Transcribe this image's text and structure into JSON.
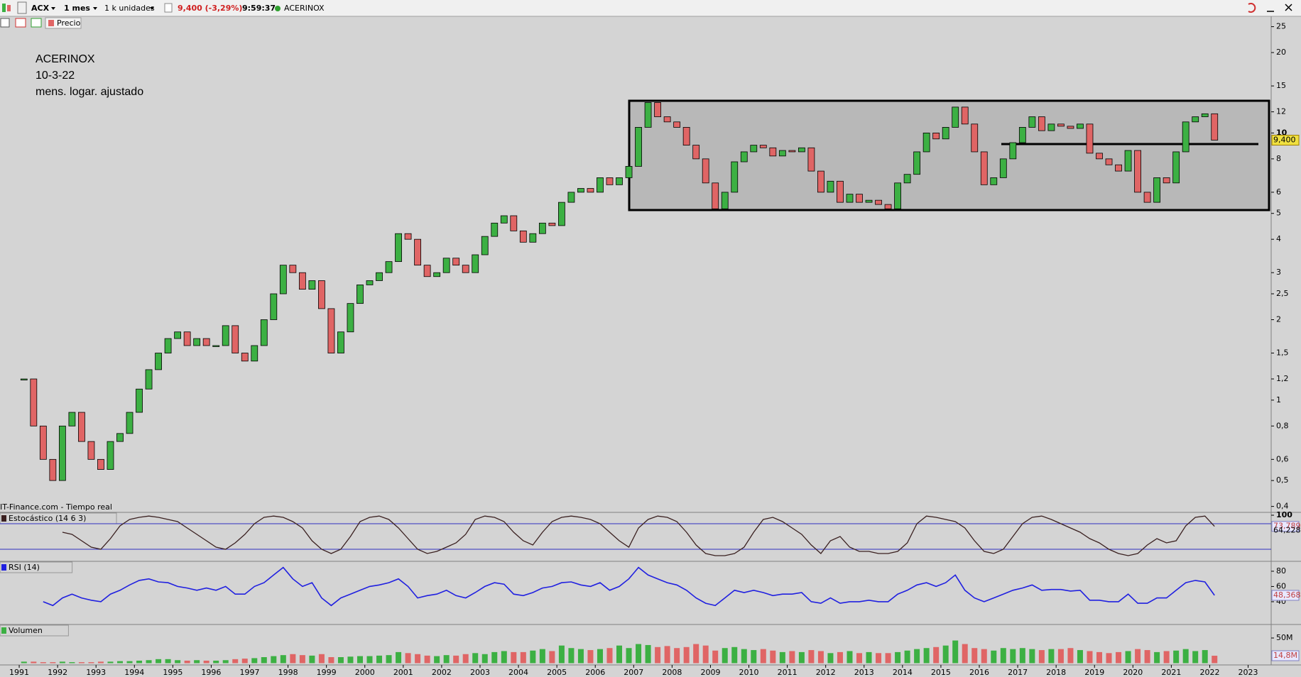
{
  "toolbar": {
    "symbol": "ACX",
    "period": "1 mes",
    "units": "1 k unidades",
    "quote": "9,400 (-3,29%)",
    "time": "9:59:37",
    "name": "ACERINOX",
    "series_button": "Precio"
  },
  "chart_data": {
    "type": "candlestick",
    "annotations": [
      "ACERINOX",
      "10-3-22",
      "mens. logar. ajustado"
    ],
    "source": "IT-Finance.com - Tiempo real",
    "xlim": [
      1990.5,
      2023.6
    ],
    "xticks": [
      1991,
      1992,
      1993,
      1994,
      1995,
      1996,
      1997,
      1998,
      1999,
      2000,
      2001,
      2002,
      2003,
      2004,
      2005,
      2006,
      2007,
      2008,
      2009,
      2010,
      2011,
      2012,
      2013,
      2014,
      2015,
      2016,
      2017,
      2018,
      2019,
      2020,
      2021,
      2022,
      2023
    ],
    "x": [
      1991,
      1991.25,
      1991.5,
      1991.75,
      1992,
      1992.25,
      1992.5,
      1992.75,
      1993,
      1993.25,
      1993.5,
      1993.75,
      1994,
      1994.25,
      1994.5,
      1994.75,
      1995,
      1995.25,
      1995.5,
      1995.75,
      1996,
      1996.25,
      1996.5,
      1996.75,
      1997,
      1997.25,
      1997.5,
      1997.75,
      1998,
      1998.25,
      1998.5,
      1998.75,
      1999,
      1999.25,
      1999.5,
      1999.75,
      2000,
      2000.25,
      2000.5,
      2000.75,
      2001,
      2001.25,
      2001.5,
      2001.75,
      2002,
      2002.25,
      2002.5,
      2002.75,
      2003,
      2003.25,
      2003.5,
      2003.75,
      2004,
      2004.25,
      2004.5,
      2004.75,
      2005,
      2005.25,
      2005.5,
      2005.75,
      2006,
      2006.25,
      2006.5,
      2006.75,
      2007,
      2007.25,
      2007.5,
      2007.75,
      2008,
      2008.25,
      2008.5,
      2008.75,
      2009,
      2009.25,
      2009.5,
      2009.75,
      2010,
      2010.25,
      2010.5,
      2010.75,
      2011,
      2011.25,
      2011.5,
      2011.75,
      2012,
      2012.25,
      2012.5,
      2012.75,
      2013,
      2013.25,
      2013.5,
      2013.75,
      2014,
      2014.25,
      2014.5,
      2014.75,
      2015,
      2015.25,
      2015.5,
      2015.75,
      2016,
      2016.25,
      2016.5,
      2016.75,
      2017,
      2017.25,
      2017.5,
      2017.75,
      2018,
      2018.25,
      2018.5,
      2018.75,
      2019,
      2019.25,
      2019.5,
      2019.75,
      2020,
      2020.25,
      2020.5,
      2020.75,
      2021,
      2021.25,
      2021.5,
      2021.75,
      2022
    ],
    "series": [
      {
        "name": "Precio",
        "up_color": "#3cb043",
        "down_color": "#e06565",
        "log": true,
        "ylim": [
          0.38,
          27
        ],
        "yticks": [
          {
            "value": 0.4,
            "label": "0,4"
          },
          {
            "value": 0.5,
            "label": "0,5"
          },
          {
            "value": 0.6,
            "label": "0,6"
          },
          {
            "value": 0.8,
            "label": "0,8"
          },
          1,
          {
            "value": 1.2,
            "label": "1,2"
          },
          {
            "value": 1.5,
            "label": "1,5"
          },
          2,
          {
            "value": 2.5,
            "label": "2,5"
          },
          3,
          4,
          5,
          6,
          8,
          10,
          12,
          15,
          20,
          25
        ],
        "last_label": "9,400",
        "values": [
          1.2,
          0.8,
          0.6,
          0.5,
          0.8,
          0.9,
          0.7,
          0.6,
          0.55,
          0.7,
          0.75,
          0.9,
          1.1,
          1.3,
          1.5,
          1.7,
          1.8,
          1.6,
          1.7,
          1.6,
          1.6,
          1.9,
          1.5,
          1.4,
          1.6,
          2.0,
          2.5,
          3.2,
          3.0,
          2.6,
          2.8,
          2.2,
          1.5,
          1.8,
          2.3,
          2.7,
          2.8,
          3.0,
          3.3,
          4.2,
          4.0,
          3.2,
          2.9,
          3.0,
          3.4,
          3.2,
          3.0,
          3.5,
          4.1,
          4.6,
          4.9,
          4.3,
          3.9,
          4.2,
          4.6,
          4.5,
          5.5,
          6.0,
          6.2,
          6.0,
          6.8,
          6.4,
          6.8,
          7.5,
          10.5,
          13.0,
          11.5,
          11.0,
          10.5,
          9.0,
          8.0,
          6.5,
          5.2,
          6.0,
          7.8,
          8.5,
          9.0,
          8.8,
          8.2,
          8.6,
          8.5,
          8.8,
          7.2,
          6.0,
          6.6,
          5.5,
          5.9,
          5.5,
          5.6,
          5.4,
          5.2,
          6.5,
          7.0,
          8.5,
          10.0,
          9.5,
          10.5,
          12.5,
          10.8,
          8.5,
          6.4,
          6.8,
          8.0,
          9.2,
          10.5,
          11.5,
          10.2,
          10.8,
          10.6,
          10.4,
          10.8,
          8.4,
          8.0,
          7.6,
          7.2,
          8.6,
          6.0,
          5.5,
          6.8,
          6.5,
          8.5,
          11.0,
          11.5,
          11.8,
          9.4
        ]
      },
      {
        "name": "Estocástico (14 6 3)",
        "color": "#3a2020",
        "level_color": "#3030c0",
        "levels": [
          20,
          80
        ],
        "ylim": [
          -6.7,
          106.7
        ],
        "yticks": [
          100
        ],
        "last_label": "73,789",
        "signal_last": 64.228,
        "signal_last_label": "64,228",
        "values": [
          null,
          null,
          null,
          null,
          60,
          55,
          40,
          25,
          20,
          45,
          75,
          90,
          95,
          98,
          95,
          90,
          85,
          70,
          55,
          40,
          25,
          20,
          35,
          55,
          80,
          95,
          98,
          95,
          85,
          70,
          40,
          20,
          10,
          20,
          50,
          85,
          95,
          98,
          90,
          70,
          45,
          20,
          10,
          15,
          25,
          35,
          55,
          90,
          98,
          95,
          85,
          60,
          40,
          30,
          60,
          85,
          95,
          98,
          95,
          90,
          80,
          60,
          40,
          25,
          70,
          90,
          98,
          95,
          85,
          60,
          30,
          10,
          5,
          5,
          10,
          25,
          60,
          90,
          95,
          85,
          70,
          55,
          30,
          10,
          40,
          50,
          25,
          15,
          15,
          10,
          10,
          15,
          35,
          80,
          98,
          95,
          90,
          85,
          70,
          40,
          15,
          10,
          20,
          50,
          80,
          95,
          98,
          90,
          80,
          70,
          60,
          45,
          35,
          20,
          10,
          5,
          10,
          30,
          45,
          35,
          40,
          75,
          95,
          98,
          73.789
        ]
      },
      {
        "name": "RSI (14)",
        "color": "#2020e0",
        "ylim": [
          12,
          93
        ],
        "yticks": [
          40,
          60,
          80
        ],
        "last_label": "48,368",
        "values": [
          null,
          null,
          40,
          35,
          45,
          50,
          45,
          42,
          40,
          50,
          55,
          62,
          68,
          70,
          66,
          65,
          60,
          58,
          55,
          58,
          55,
          60,
          50,
          50,
          60,
          65,
          75,
          85,
          70,
          60,
          65,
          45,
          35,
          45,
          50,
          55,
          60,
          62,
          65,
          70,
          60,
          45,
          48,
          50,
          55,
          48,
          45,
          52,
          60,
          65,
          63,
          50,
          48,
          52,
          58,
          60,
          65,
          66,
          62,
          60,
          65,
          55,
          60,
          70,
          85,
          75,
          70,
          65,
          62,
          55,
          45,
          38,
          35,
          45,
          55,
          52,
          55,
          52,
          48,
          50,
          50,
          52,
          40,
          38,
          45,
          38,
          40,
          40,
          42,
          40,
          40,
          50,
          55,
          62,
          65,
          60,
          65,
          75,
          55,
          45,
          40,
          45,
          50,
          55,
          58,
          62,
          55,
          56,
          56,
          54,
          55,
          42,
          42,
          40,
          40,
          50,
          38,
          38,
          45,
          45,
          55,
          65,
          68,
          66,
          48.368
        ]
      },
      {
        "name": "Volumen",
        "up_color": "#3cb043",
        "down_color": "#e06565",
        "ylim": [
          -3.5,
          76.8
        ],
        "yticks": [
          {
            "value": 50,
            "label": "50M"
          }
        ],
        "last_label": "14,8M",
        "values": [
          3,
          3,
          2,
          2,
          3,
          2,
          2,
          2,
          3,
          3,
          4,
          4,
          5,
          6,
          8,
          8,
          6,
          5,
          6,
          5,
          5,
          6,
          8,
          9,
          10,
          12,
          14,
          16,
          18,
          16,
          15,
          18,
          12,
          12,
          13,
          14,
          14,
          15,
          16,
          22,
          20,
          18,
          15,
          14,
          16,
          15,
          18,
          20,
          18,
          22,
          24,
          22,
          22,
          25,
          28,
          24,
          35,
          30,
          28,
          26,
          28,
          30,
          35,
          30,
          38,
          36,
          32,
          34,
          30,
          32,
          38,
          35,
          25,
          30,
          32,
          28,
          26,
          28,
          25,
          22,
          24,
          22,
          26,
          24,
          20,
          22,
          24,
          20,
          22,
          20,
          20,
          22,
          25,
          28,
          30,
          32,
          35,
          45,
          38,
          30,
          28,
          25,
          30,
          28,
          30,
          28,
          26,
          28,
          28,
          30,
          26,
          24,
          22,
          20,
          22,
          24,
          28,
          26,
          22,
          24,
          25,
          28,
          24,
          26,
          14.8
        ]
      }
    ]
  }
}
